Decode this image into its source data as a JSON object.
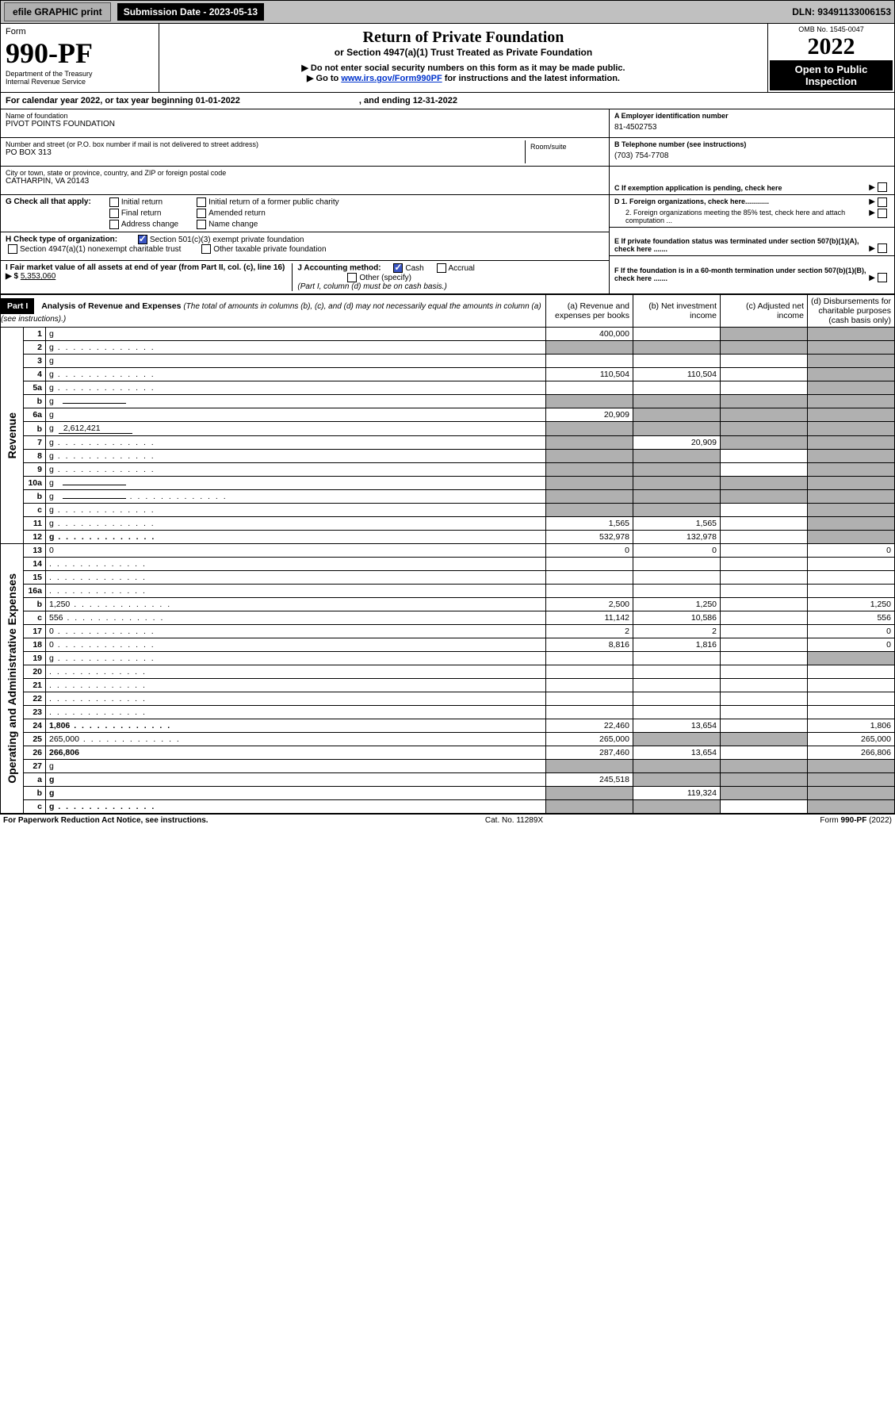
{
  "topbar": {
    "efile": "efile GRAPHIC print",
    "submission_label": "Submission Date - 2023-05-13",
    "dln_label": "DLN: 93491133006153"
  },
  "header": {
    "form_label": "Form",
    "form_number": "990-PF",
    "dept1": "Department of the Treasury",
    "dept2": "Internal Revenue Service",
    "title": "Return of Private Foundation",
    "subtitle": "or Section 4947(a)(1) Trust Treated as Private Foundation",
    "warn1": "▶ Do not enter social security numbers on this form as it may be made public.",
    "warn2_pre": "▶ Go to ",
    "warn2_link": "www.irs.gov/Form990PF",
    "warn2_post": " for instructions and the latest information.",
    "omb": "OMB No. 1545-0047",
    "year": "2022",
    "open": "Open to Public Inspection"
  },
  "calendar": {
    "text": "For calendar year 2022, or tax year beginning 01-01-2022",
    "ending": ", and ending 12-31-2022"
  },
  "org": {
    "name_label": "Name of foundation",
    "name": "PIVOT POINTS FOUNDATION",
    "addr_label": "Number and street (or P.O. box number if mail is not delivered to street address)",
    "addr": "PO BOX 313",
    "room_label": "Room/suite",
    "city_label": "City or town, state or province, country, and ZIP or foreign postal code",
    "city": "CATHARPIN, VA  20143"
  },
  "right_info": {
    "a_label": "A Employer identification number",
    "a_val": "81-4502753",
    "b_label": "B Telephone number (see instructions)",
    "b_val": "(703) 754-7708",
    "c_label": "C If exemption application is pending, check here",
    "d1": "D 1. Foreign organizations, check here............",
    "d2": "2. Foreign organizations meeting the 85% test, check here and attach computation ...",
    "e_label": "E  If private foundation status was terminated under section 507(b)(1)(A), check here .......",
    "f_label": "F  If the foundation is in a 60-month termination under section 507(b)(1)(B), check here ......."
  },
  "g_row": {
    "label": "G Check all that apply:",
    "opts": [
      "Initial return",
      "Final return",
      "Address change",
      "Initial return of a former public charity",
      "Amended return",
      "Name change"
    ]
  },
  "h_row": {
    "label": "H Check type of organization:",
    "opt1": "Section 501(c)(3) exempt private foundation",
    "opt2": "Section 4947(a)(1) nonexempt charitable trust",
    "opt3": "Other taxable private foundation"
  },
  "i_row": {
    "label": "I Fair market value of all assets at end of year (from Part II, col. (c), line 16) ▶ $",
    "val": "5,353,060"
  },
  "j_row": {
    "label": "J Accounting method:",
    "cash": "Cash",
    "accrual": "Accrual",
    "other": "Other (specify)",
    "note": "(Part I, column (d) must be on cash basis.)"
  },
  "part1": {
    "header": "Part I",
    "title": "Analysis of Revenue and Expenses",
    "desc": "(The total of amounts in columns (b), (c), and (d) may not necessarily equal the amounts in column (a) (see instructions).)",
    "col_a": "(a)   Revenue and expenses per books",
    "col_b": "(b)   Net investment income",
    "col_c": "(c)   Adjusted net income",
    "col_d": "(d)   Disbursements for charitable purposes (cash basis only)"
  },
  "side_labels": {
    "revenue": "Revenue",
    "expenses": "Operating and Administrative Expenses"
  },
  "rows": [
    {
      "n": "1",
      "d": "g",
      "a": "400,000",
      "b": "",
      "c": "g"
    },
    {
      "n": "2",
      "d": "g",
      "a": "g",
      "b": "g",
      "c": "g",
      "dots": true
    },
    {
      "n": "3",
      "d": "g",
      "a": "",
      "b": "",
      "c": ""
    },
    {
      "n": "4",
      "d": "g",
      "a": "110,504",
      "b": "110,504",
      "c": "",
      "dots": true
    },
    {
      "n": "5a",
      "d": "g",
      "a": "",
      "b": "",
      "c": "",
      "dots": true
    },
    {
      "n": "b",
      "d": "g",
      "a": "g",
      "b": "g",
      "c": "g",
      "line": true
    },
    {
      "n": "6a",
      "d": "g",
      "a": "20,909",
      "b": "g",
      "c": "g"
    },
    {
      "n": "b",
      "d": "g",
      "a": "g",
      "b": "g",
      "c": "g",
      "inline": "2,612,421"
    },
    {
      "n": "7",
      "d": "g",
      "a": "g",
      "b": "20,909",
      "c": "g",
      "dots": true
    },
    {
      "n": "8",
      "d": "g",
      "a": "g",
      "b": "g",
      "c": "",
      "dots": true
    },
    {
      "n": "9",
      "d": "g",
      "a": "g",
      "b": "g",
      "c": "",
      "dots": true
    },
    {
      "n": "10a",
      "d": "g",
      "a": "g",
      "b": "g",
      "c": "g",
      "line": true
    },
    {
      "n": "b",
      "d": "g",
      "a": "g",
      "b": "g",
      "c": "g",
      "dots": true,
      "line": true
    },
    {
      "n": "c",
      "d": "g",
      "a": "g",
      "b": "g",
      "c": "",
      "dots": true
    },
    {
      "n": "11",
      "d": "g",
      "a": "1,565",
      "b": "1,565",
      "c": "",
      "dots": true
    },
    {
      "n": "12",
      "d": "g",
      "a": "532,978",
      "b": "132,978",
      "c": "",
      "bold": true,
      "dots": true
    },
    {
      "n": "13",
      "d": "0",
      "a": "0",
      "b": "0",
      "c": ""
    },
    {
      "n": "14",
      "d": "",
      "a": "",
      "b": "",
      "c": "",
      "dots": true
    },
    {
      "n": "15",
      "d": "",
      "a": "",
      "b": "",
      "c": "",
      "dots": true
    },
    {
      "n": "16a",
      "d": "",
      "a": "",
      "b": "",
      "c": "",
      "dots": true
    },
    {
      "n": "b",
      "d": "1,250",
      "a": "2,500",
      "b": "1,250",
      "c": "",
      "dots": true
    },
    {
      "n": "c",
      "d": "556",
      "a": "11,142",
      "b": "10,586",
      "c": "",
      "dots": true
    },
    {
      "n": "17",
      "d": "0",
      "a": "2",
      "b": "2",
      "c": "",
      "dots": true
    },
    {
      "n": "18",
      "d": "0",
      "a": "8,816",
      "b": "1,816",
      "c": "",
      "dots": true
    },
    {
      "n": "19",
      "d": "g",
      "a": "",
      "b": "",
      "c": "",
      "dots": true
    },
    {
      "n": "20",
      "d": "",
      "a": "",
      "b": "",
      "c": "",
      "dots": true
    },
    {
      "n": "21",
      "d": "",
      "a": "",
      "b": "",
      "c": "",
      "dots": true
    },
    {
      "n": "22",
      "d": "",
      "a": "",
      "b": "",
      "c": "",
      "dots": true
    },
    {
      "n": "23",
      "d": "",
      "a": "",
      "b": "",
      "c": "",
      "dots": true
    },
    {
      "n": "24",
      "d": "1,806",
      "a": "22,460",
      "b": "13,654",
      "c": "",
      "bold": true,
      "dots": true
    },
    {
      "n": "25",
      "d": "265,000",
      "a": "265,000",
      "b": "g",
      "c": "g",
      "dots": true
    },
    {
      "n": "26",
      "d": "266,806",
      "a": "287,460",
      "b": "13,654",
      "c": "",
      "bold": true
    },
    {
      "n": "27",
      "d": "g",
      "a": "g",
      "b": "g",
      "c": "g"
    },
    {
      "n": "a",
      "d": "g",
      "a": "245,518",
      "b": "g",
      "c": "g",
      "bold": true
    },
    {
      "n": "b",
      "d": "g",
      "a": "g",
      "b": "119,324",
      "c": "g",
      "bold": true
    },
    {
      "n": "c",
      "d": "g",
      "a": "g",
      "b": "g",
      "c": "",
      "bold": true,
      "dots": true
    }
  ],
  "footer": {
    "left": "For Paperwork Reduction Act Notice, see instructions.",
    "mid": "Cat. No. 11289X",
    "right": "Form 990-PF (2022)"
  },
  "colors": {
    "grey": "#b0b0b0",
    "link": "#0033cc",
    "check": "#3a55c4"
  }
}
